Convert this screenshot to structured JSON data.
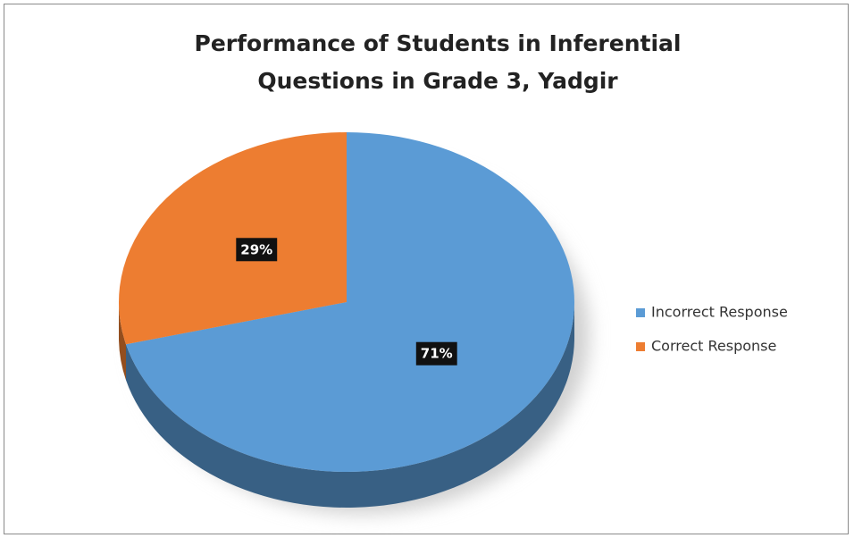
{
  "chart_data": {
    "type": "pie",
    "title": "Performance of Students in Inferential Questions in Grade 3, Yadgir",
    "categories": [
      "Incorrect Response",
      "Correct Response"
    ],
    "values": [
      71,
      29
    ],
    "value_labels": [
      "71%",
      "29%"
    ],
    "colors": [
      "#5b9bd5",
      "#ed7d31"
    ],
    "legend": "right"
  }
}
